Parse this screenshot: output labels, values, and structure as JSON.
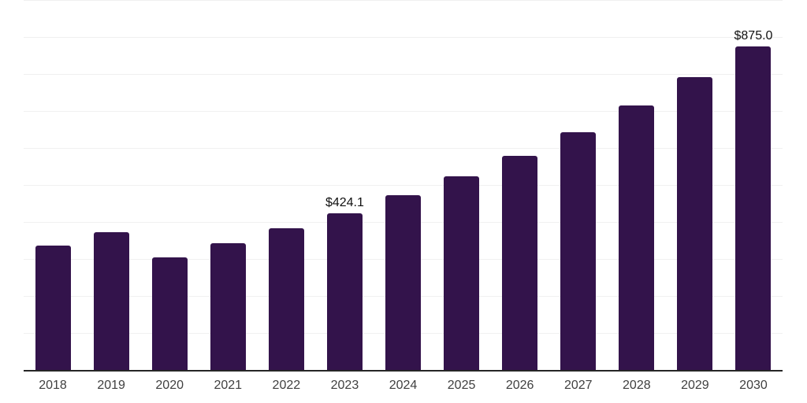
{
  "chart_data": {
    "type": "bar",
    "title": "",
    "xlabel": "",
    "ylabel": "",
    "categories": [
      "2018",
      "2019",
      "2020",
      "2021",
      "2022",
      "2023",
      "2024",
      "2025",
      "2026",
      "2027",
      "2028",
      "2029",
      "2030"
    ],
    "values": [
      337,
      373,
      305,
      343,
      382,
      424.1,
      472,
      523,
      579,
      642,
      714,
      791,
      875
    ],
    "data_labels": [
      "",
      "",
      "",
      "",
      "",
      "$424.1",
      "",
      "",
      "",
      "",
      "",
      "",
      "$875.0"
    ],
    "ylim": [
      0,
      1000
    ],
    "gridline_step": 100,
    "grid": "horizontal",
    "legend": "none",
    "y_axis_labels_visible": false,
    "colors": {
      "bar": "#33134b",
      "gridline": "#f0f0f0",
      "axis_line": "#262626",
      "tick_label": "#404040",
      "data_label": "#111111",
      "background": "#ffffff"
    }
  }
}
